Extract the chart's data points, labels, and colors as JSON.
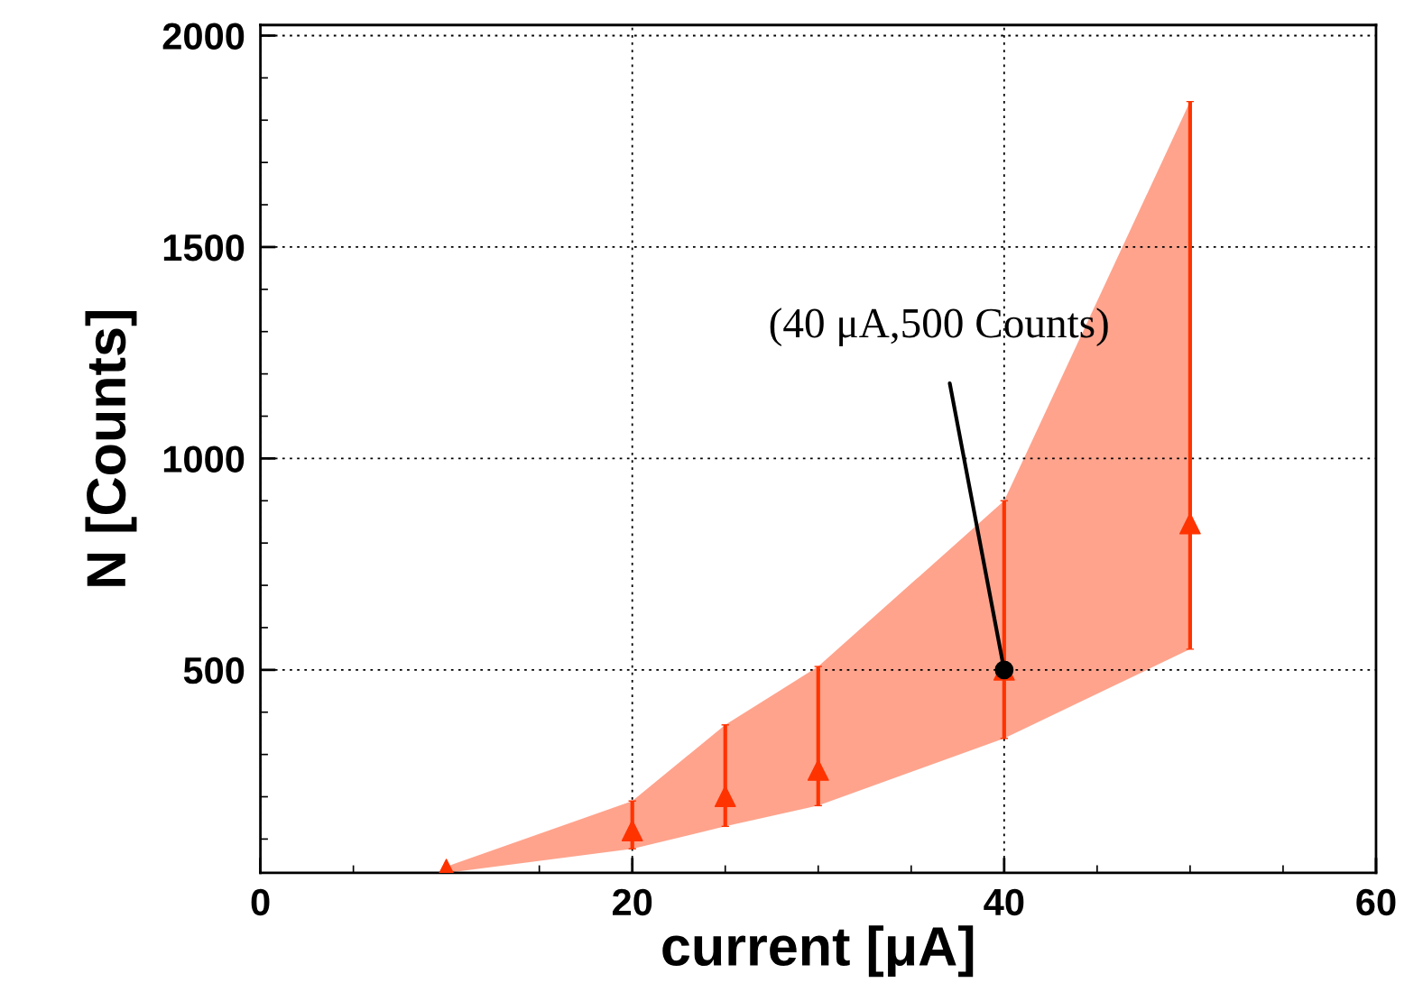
{
  "chart_data": {
    "type": "scatter",
    "xlabel": "current [μA]",
    "ylabel": "N [Counts]",
    "x": [
      10,
      20,
      25,
      30,
      40,
      50
    ],
    "series": [
      {
        "color": "#ff3300",
        "values": [
          28,
          120,
          201,
          263,
          500,
          846
        ],
        "errors": [
          null,
          [
            77,
            190
          ],
          [
            130,
            370
          ],
          [
            179,
            508
          ],
          [
            338,
            900
          ],
          [
            549,
            1844
          ]
        ],
        "lower": [
          20,
          77,
          130,
          179,
          338,
          549
        ],
        "upper": [
          35,
          190,
          370,
          508,
          900,
          1844
        ]
      }
    ],
    "marker": "triangle",
    "xlim": [
      0,
      60
    ],
    "xticks": [
      0,
      20,
      40,
      60
    ],
    "ylim": [
      20,
      2025
    ],
    "yticks": [
      500,
      1000,
      1500,
      2000
    ],
    "grid": true,
    "annotations": [
      {
        "text": "(40 μA,500 Counts)",
        "x": 40,
        "y": 500
      }
    ]
  }
}
